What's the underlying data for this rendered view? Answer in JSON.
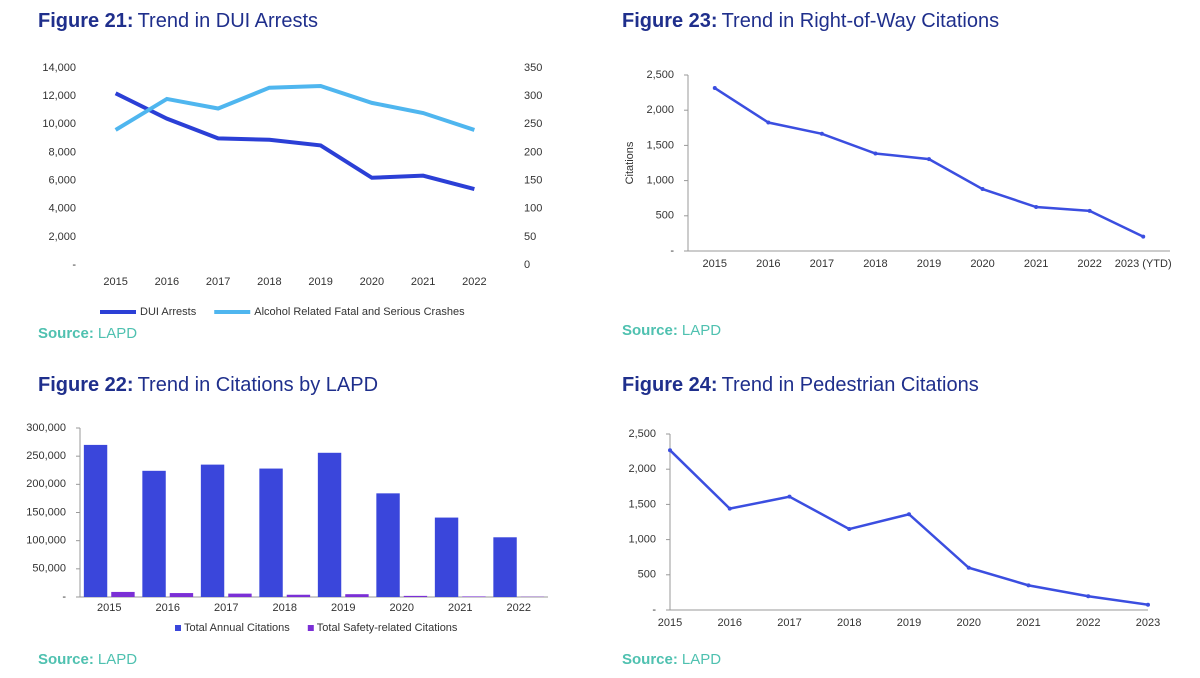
{
  "chart_data": [
    {
      "type": "line",
      "figure": "Figure 21:",
      "title": "Trend in DUI Arrests",
      "source_label": "Source:",
      "source": "LAPD",
      "categories": [
        "2015",
        "2016",
        "2017",
        "2018",
        "2019",
        "2020",
        "2021",
        "2022"
      ],
      "series": [
        {
          "name": "DUI Arrests",
          "color": "#2b3fd6",
          "values": [
            12200,
            10400,
            9000,
            8900,
            8500,
            6200,
            6350,
            5400
          ]
        },
        {
          "name": "Alcohol Related Fatal and Serious Crashes",
          "color": "#4fb6ef",
          "axis": "y2",
          "values": [
            240,
            295,
            278,
            315,
            318,
            288,
            270,
            240
          ]
        }
      ],
      "ylim": [
        0,
        14000
      ],
      "yticks": [
        {
          "value": 0,
          "label": "-"
        },
        {
          "value": 2000,
          "label": "2,000"
        },
        {
          "value": 4000,
          "label": "4,000"
        },
        {
          "value": 6000,
          "label": "6,000"
        },
        {
          "value": 8000,
          "label": "8,000"
        },
        {
          "value": 10000,
          "label": "10,000"
        },
        {
          "value": 12000,
          "label": "12,000"
        },
        {
          "value": 14000,
          "label": "14,000"
        }
      ],
      "y2lim": [
        0,
        350
      ],
      "y2ticks": [
        0,
        50,
        100,
        150,
        200,
        250,
        300,
        350
      ]
    },
    {
      "type": "bar",
      "figure": "Figure 22:",
      "title": "Trend in Citations by LAPD",
      "source_label": "Source:",
      "source": "LAPD",
      "categories": [
        "2015",
        "2016",
        "2017",
        "2018",
        "2019",
        "2020",
        "2021",
        "2022"
      ],
      "series": [
        {
          "name": "Total Annual Citations",
          "color": "#3a46db",
          "values": [
            270000,
            224000,
            235000,
            228000,
            256000,
            184000,
            141000,
            106000
          ]
        },
        {
          "name": "Total Safety-related Citations",
          "color": "#7b2fd6",
          "values": [
            9000,
            7000,
            6000,
            4000,
            5000,
            2000,
            1000,
            500
          ]
        }
      ],
      "ylim": [
        0,
        300000
      ],
      "yticks": [
        {
          "value": 0,
          "label": "-"
        },
        {
          "value": 50000,
          "label": "50,000"
        },
        {
          "value": 100000,
          "label": "100,000"
        },
        {
          "value": 150000,
          "label": "150,000"
        },
        {
          "value": 200000,
          "label": "200,000"
        },
        {
          "value": 250000,
          "label": "250,000"
        },
        {
          "value": 300000,
          "label": "300,000"
        }
      ]
    },
    {
      "type": "line",
      "figure": "Figure 23:",
      "title": "Trend in Right-of-Way Citations",
      "source_label": "Source:",
      "source": "LAPD",
      "y_label": "Citations",
      "categories": [
        "2015",
        "2016",
        "2017",
        "2018",
        "2019",
        "2020",
        "2021",
        "2022",
        "2023 (YTD)"
      ],
      "color": "#3b4ee0",
      "values": [
        2315,
        1825,
        1665,
        1385,
        1305,
        880,
        625,
        570,
        205
      ],
      "ylim": [
        0,
        2500
      ],
      "yticks": [
        {
          "value": 0,
          "label": "-"
        },
        500,
        {
          "value": 1000,
          "label": "1,000"
        },
        {
          "value": 1500,
          "label": "1,500"
        },
        {
          "value": 2000,
          "label": "2,000"
        },
        {
          "value": 2500,
          "label": "2,500"
        }
      ]
    },
    {
      "type": "line",
      "figure": "Figure 24:",
      "title": "Trend in Pedestrian Citations",
      "source_label": "Source:",
      "source": "LAPD",
      "categories": [
        "2015",
        "2016",
        "2017",
        "2018",
        "2019",
        "2020",
        "2021",
        "2022",
        "2023"
      ],
      "color": "#3b4ee0",
      "values": [
        2270,
        1440,
        1610,
        1150,
        1360,
        600,
        350,
        195,
        75
      ],
      "ylim": [
        0,
        2500
      ],
      "yticks": [
        {
          "value": 0,
          "label": "-"
        },
        500,
        {
          "value": 1000,
          "label": "1,000"
        },
        {
          "value": 1500,
          "label": "1,500"
        },
        {
          "value": 2000,
          "label": "2,000"
        },
        {
          "value": 2500,
          "label": "2,500"
        }
      ]
    }
  ]
}
